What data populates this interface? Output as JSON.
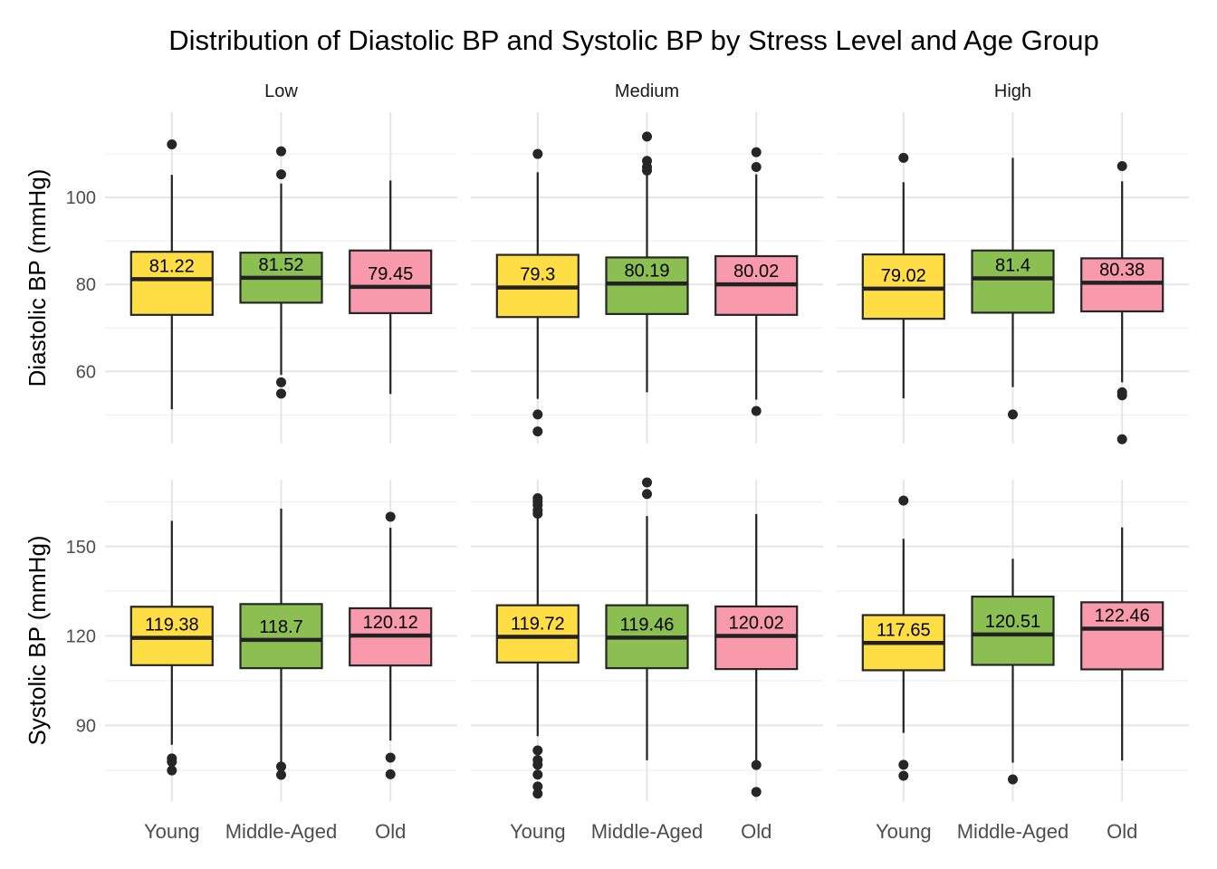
{
  "chart_data": {
    "type": "boxplot",
    "title": "Distribution of Diastolic BP and Systolic BP by Stress Level and Age Group",
    "facet_columns": [
      "Low",
      "Medium",
      "High"
    ],
    "categories": [
      "Young",
      "Middle-Aged",
      "Old"
    ],
    "colors": {
      "Young": "#FFDD44",
      "Middle-Aged": "#8BBF52",
      "Old": "#F89AAB"
    },
    "grid": true,
    "legend": "none",
    "rows": [
      {
        "ylabel": "Diastolic BP (mmHg)",
        "ylim": [
          43,
          120
        ],
        "yticks": [
          60,
          80,
          100
        ],
        "panels": [
          {
            "stress": "Low",
            "boxes": [
              {
                "group": "Young",
                "q1": 73.0,
                "median": 81.22,
                "q3": 87.5,
                "whisker_low": 51.3,
                "whisker_high": 105.2,
                "outliers": [
                  112.2
                ],
                "label": "81.22"
              },
              {
                "group": "Middle-Aged",
                "q1": 75.8,
                "median": 81.52,
                "q3": 87.3,
                "whisker_low": 59.2,
                "whisker_high": 103.2,
                "outliers": [
                  110.6,
                  105.3,
                  57.5,
                  54.9
                ],
                "label": "81.52"
              },
              {
                "group": "Old",
                "q1": 73.4,
                "median": 79.45,
                "q3": 87.8,
                "whisker_low": 54.8,
                "whisker_high": 103.9,
                "outliers": [],
                "label": "79.45"
              }
            ]
          },
          {
            "stress": "Medium",
            "boxes": [
              {
                "group": "Young",
                "q1": 72.5,
                "median": 79.3,
                "q3": 86.8,
                "whisker_low": 53.7,
                "whisker_high": 105.8,
                "outliers": [
                  110.0,
                  50.1,
                  46.2
                ],
                "label": "79.3"
              },
              {
                "group": "Middle-Aged",
                "q1": 73.2,
                "median": 80.19,
                "q3": 86.2,
                "whisker_low": 55.2,
                "whisker_high": 105.2,
                "outliers": [
                  114.0,
                  108.4,
                  107.0,
                  106.2
                ],
                "label": "80.19"
              },
              {
                "group": "Old",
                "q1": 73.0,
                "median": 80.02,
                "q3": 86.5,
                "whisker_low": 53.5,
                "whisker_high": 105.3,
                "outliers": [
                  110.4,
                  107.0,
                  50.9
                ],
                "label": "80.02"
              }
            ]
          },
          {
            "stress": "High",
            "boxes": [
              {
                "group": "Young",
                "q1": 72.1,
                "median": 79.02,
                "q3": 86.9,
                "whisker_low": 53.8,
                "whisker_high": 103.5,
                "outliers": [
                  109.1
                ],
                "label": "79.02"
              },
              {
                "group": "Middle-Aged",
                "q1": 73.5,
                "median": 81.4,
                "q3": 87.8,
                "whisker_low": 56.4,
                "whisker_high": 109.1,
                "outliers": [
                  50.1
                ],
                "label": "81.4"
              },
              {
                "group": "Old",
                "q1": 73.8,
                "median": 80.38,
                "q3": 86.0,
                "whisker_low": 57.5,
                "whisker_high": 103.7,
                "outliers": [
                  107.2,
                  55.2,
                  54.5,
                  44.4
                ],
                "label": "80.38"
              }
            ]
          }
        ]
      },
      {
        "ylabel": "Systolic BP (mmHg)",
        "ylim": [
          64,
          173
        ],
        "yticks": [
          90,
          120,
          150
        ],
        "panels": [
          {
            "stress": "Low",
            "boxes": [
              {
                "group": "Young",
                "q1": 110.2,
                "median": 119.38,
                "q3": 129.8,
                "whisker_low": 83.5,
                "whisker_high": 158.6,
                "outliers": [
                  78.9,
                  77.8,
                  74.9
                ],
                "label": "119.38"
              },
              {
                "group": "Middle-Aged",
                "q1": 109.2,
                "median": 118.7,
                "q3": 130.7,
                "whisker_low": 77.5,
                "whisker_high": 162.7,
                "outliers": [
                  76.2,
                  73.4
                ],
                "label": "118.7"
              },
              {
                "group": "Old",
                "q1": 110.1,
                "median": 120.12,
                "q3": 129.3,
                "whisker_low": 84.9,
                "whisker_high": 156.3,
                "outliers": [
                  160.0,
                  79.2,
                  73.6
                ],
                "label": "120.12"
              }
            ]
          },
          {
            "stress": "Medium",
            "boxes": [
              {
                "group": "Young",
                "q1": 111.1,
                "median": 119.72,
                "q3": 130.3,
                "whisker_low": 86.4,
                "whisker_high": 159.7,
                "outliers": [
                  166.2,
                  165.1,
                  163.9,
                  162.2,
                  161.0,
                  81.6,
                  78.4,
                  76.8,
                  73.5,
                  69.5,
                  67.1
                ],
                "label": "119.72"
              },
              {
                "group": "Middle-Aged",
                "q1": 109.2,
                "median": 119.46,
                "q3": 130.3,
                "whisker_low": 78.3,
                "whisker_high": 160.2,
                "outliers": [
                  171.5,
                  167.6
                ],
                "label": "119.46"
              },
              {
                "group": "Old",
                "q1": 108.9,
                "median": 120.02,
                "q3": 129.9,
                "whisker_low": 78.0,
                "whisker_high": 160.9,
                "outliers": [
                  76.7,
                  67.7
                ],
                "label": "120.02"
              }
            ]
          },
          {
            "stress": "High",
            "boxes": [
              {
                "group": "Young",
                "q1": 108.5,
                "median": 117.65,
                "q3": 127.0,
                "whisker_low": 87.5,
                "whisker_high": 152.6,
                "outliers": [
                  165.4,
                  76.8,
                  73.1
                ],
                "label": "117.65"
              },
              {
                "group": "Middle-Aged",
                "q1": 110.3,
                "median": 120.51,
                "q3": 133.2,
                "whisker_low": 77.5,
                "whisker_high": 145.9,
                "outliers": [
                  71.9
                ],
                "label": "120.51"
              },
              {
                "group": "Old",
                "q1": 108.8,
                "median": 122.46,
                "q3": 131.3,
                "whisker_low": 78.2,
                "whisker_high": 156.4,
                "outliers": [],
                "label": "122.46"
              }
            ]
          }
        ]
      }
    ]
  }
}
